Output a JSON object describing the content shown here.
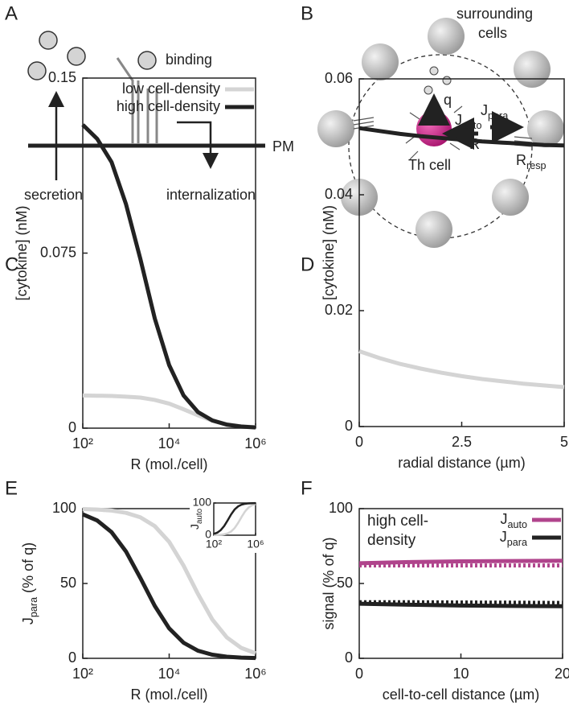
{
  "panel_a": {
    "label": "A",
    "binding": "binding",
    "secretion": "secretion",
    "internalization": "internalization",
    "pm": "PM"
  },
  "panel_b": {
    "label": "B",
    "surrounding": "surrounding",
    "cells": "cells",
    "q": "q",
    "j_auto": {
      "text": "J",
      "sub": "auto"
    },
    "j_para": {
      "text": "J",
      "sub": "para"
    },
    "r": "R",
    "th_cell": "Th cell",
    "r_resp": {
      "text": "R",
      "sub": "resp"
    }
  },
  "chart_data": [
    {
      "type": "line",
      "panel_label": "C",
      "xscale": "log",
      "xlabel": "R (mol./cell)",
      "ylabel": "[cytokine] (nM)",
      "xlim": [
        100,
        1000000
      ],
      "ylim": [
        0,
        0.15
      ],
      "xticks": [
        {
          "value": 100,
          "label": "10²"
        },
        {
          "value": 10000,
          "label": "10⁴"
        },
        {
          "value": 1000000,
          "label": "10⁶"
        }
      ],
      "yticks": [
        0,
        0.075,
        0.15
      ],
      "legend": "upper right",
      "x": [
        100,
        215,
        464,
        1000,
        2154,
        4642,
        10000,
        21544,
        46416,
        100000,
        215443,
        464159,
        1000000
      ],
      "series": [
        {
          "name": "low cell-density",
          "color": "#d4d4d4",
          "values": [
            0.014,
            0.0139,
            0.0138,
            0.0135,
            0.0131,
            0.0121,
            0.0105,
            0.0081,
            0.0055,
            0.0032,
            0.0017,
            0.0008,
            0.0004
          ]
        },
        {
          "name": "high cell-density",
          "color": "#222222",
          "values": [
            0.13,
            0.124,
            0.114,
            0.096,
            0.0725,
            0.047,
            0.027,
            0.014,
            0.0069,
            0.0033,
            0.0015,
            0.0007,
            0.0003
          ]
        }
      ]
    },
    {
      "type": "line",
      "panel_label": "D",
      "xlabel": "radial distance (µm)",
      "ylabel": "[cytokine] (nM)",
      "xlim": [
        0,
        5
      ],
      "ylim": [
        0,
        0.06
      ],
      "xticks": [
        0,
        2.5,
        5
      ],
      "yticks": [
        0,
        0.02,
        0.04,
        0.06
      ],
      "x": [
        0,
        0.5,
        1,
        1.5,
        2,
        2.5,
        3,
        3.5,
        4,
        4.5,
        5
      ],
      "series": [
        {
          "color": "#d4d4d4",
          "values": [
            0.013,
            0.0118,
            0.0108,
            0.01,
            0.0093,
            0.0087,
            0.0082,
            0.0078,
            0.0074,
            0.0071,
            0.0068
          ]
        },
        {
          "color": "#222222",
          "values": [
            0.0515,
            0.051,
            0.0505,
            0.0501,
            0.0498,
            0.0495,
            0.0492,
            0.049,
            0.0488,
            0.0486,
            0.0485
          ]
        }
      ]
    },
    {
      "type": "line",
      "panel_label": "E",
      "xscale": "log",
      "xlabel": "R (mol./cell)",
      "ylabel": {
        "text": "J",
        "sub": "para",
        "after": " (% of q)"
      },
      "xlim": [
        100,
        1000000
      ],
      "ylim": [
        0,
        100
      ],
      "xticks": [
        {
          "value": 100,
          "label": "10²"
        },
        {
          "value": 10000,
          "label": "10⁴"
        },
        {
          "value": 1000000,
          "label": "10⁶"
        }
      ],
      "yticks": [
        0,
        50,
        100
      ],
      "x": [
        100,
        215,
        464,
        1000,
        2154,
        4642,
        10000,
        21544,
        46416,
        100000,
        215443,
        464159,
        1000000
      ],
      "series": [
        {
          "color": "#d4d4d4",
          "values": [
            99.7,
            99.4,
            98.7,
            97.2,
            94.2,
            88.3,
            77.8,
            61.9,
            43,
            25.9,
            14,
            7,
            3.4
          ]
        },
        {
          "color": "#222222",
          "values": [
            96.2,
            92.1,
            84.3,
            71.4,
            53.7,
            35,
            20,
            10.4,
            5.1,
            2.4,
            1.1,
            0.5,
            0.2
          ]
        }
      ]
    },
    {
      "type": "line",
      "panel_label": "F",
      "xlabel": "cell-to-cell distance (µm)",
      "ylabel": "signal (% of q)",
      "xlim": [
        0,
        20
      ],
      "ylim": [
        0,
        100
      ],
      "xticks": [
        0,
        10,
        20
      ],
      "yticks": [
        0,
        50,
        100
      ],
      "legend": "upper right",
      "annotation": [
        "high cell-",
        "density"
      ],
      "x": [
        0,
        5,
        10,
        15,
        20
      ],
      "series": [
        {
          "name": {
            "text": "J",
            "sub": "auto"
          },
          "color": "#b0448c",
          "values": [
            63.5,
            64.3,
            64.8,
            65,
            65.2
          ]
        },
        {
          "name": {
            "text": "J",
            "sub": "para"
          },
          "color": "#222222",
          "values": [
            36.5,
            35.8,
            35.3,
            35,
            34.8
          ]
        },
        {
          "color": "#b0448c",
          "dash": "dotted",
          "values": [
            62,
            62,
            62,
            62,
            62
          ]
        },
        {
          "color": "#222222",
          "dash": "dotted",
          "values": [
            37.5,
            37.5,
            37.3,
            37.2,
            37
          ]
        }
      ]
    },
    {
      "type": "line",
      "xscale": "log",
      "ylabel": {
        "text": "J",
        "sub": "auto"
      },
      "xlim": [
        100,
        1000000
      ],
      "ylim": [
        0,
        100
      ],
      "xticks": [
        {
          "value": 100,
          "label": "10²"
        },
        {
          "value": 1000000,
          "label": "10⁶"
        }
      ],
      "yticks": [
        0,
        100
      ],
      "x": [
        100,
        215,
        464,
        1000,
        2154,
        4642,
        10000,
        21544,
        46416,
        100000,
        215443,
        464159,
        1000000
      ],
      "series": [
        {
          "color": "#d4d4d4",
          "values": [
            0.3,
            0.6,
            1.3,
            2.8,
            5.8,
            11.7,
            22.2,
            38.1,
            57,
            74.1,
            86,
            93,
            96.6
          ]
        },
        {
          "color": "#222222",
          "values": [
            3.8,
            7.9,
            15.7,
            28.6,
            46.3,
            65,
            80,
            89.6,
            94.9,
            97.6,
            98.9,
            99.5,
            99.8
          ]
        }
      ]
    }
  ]
}
